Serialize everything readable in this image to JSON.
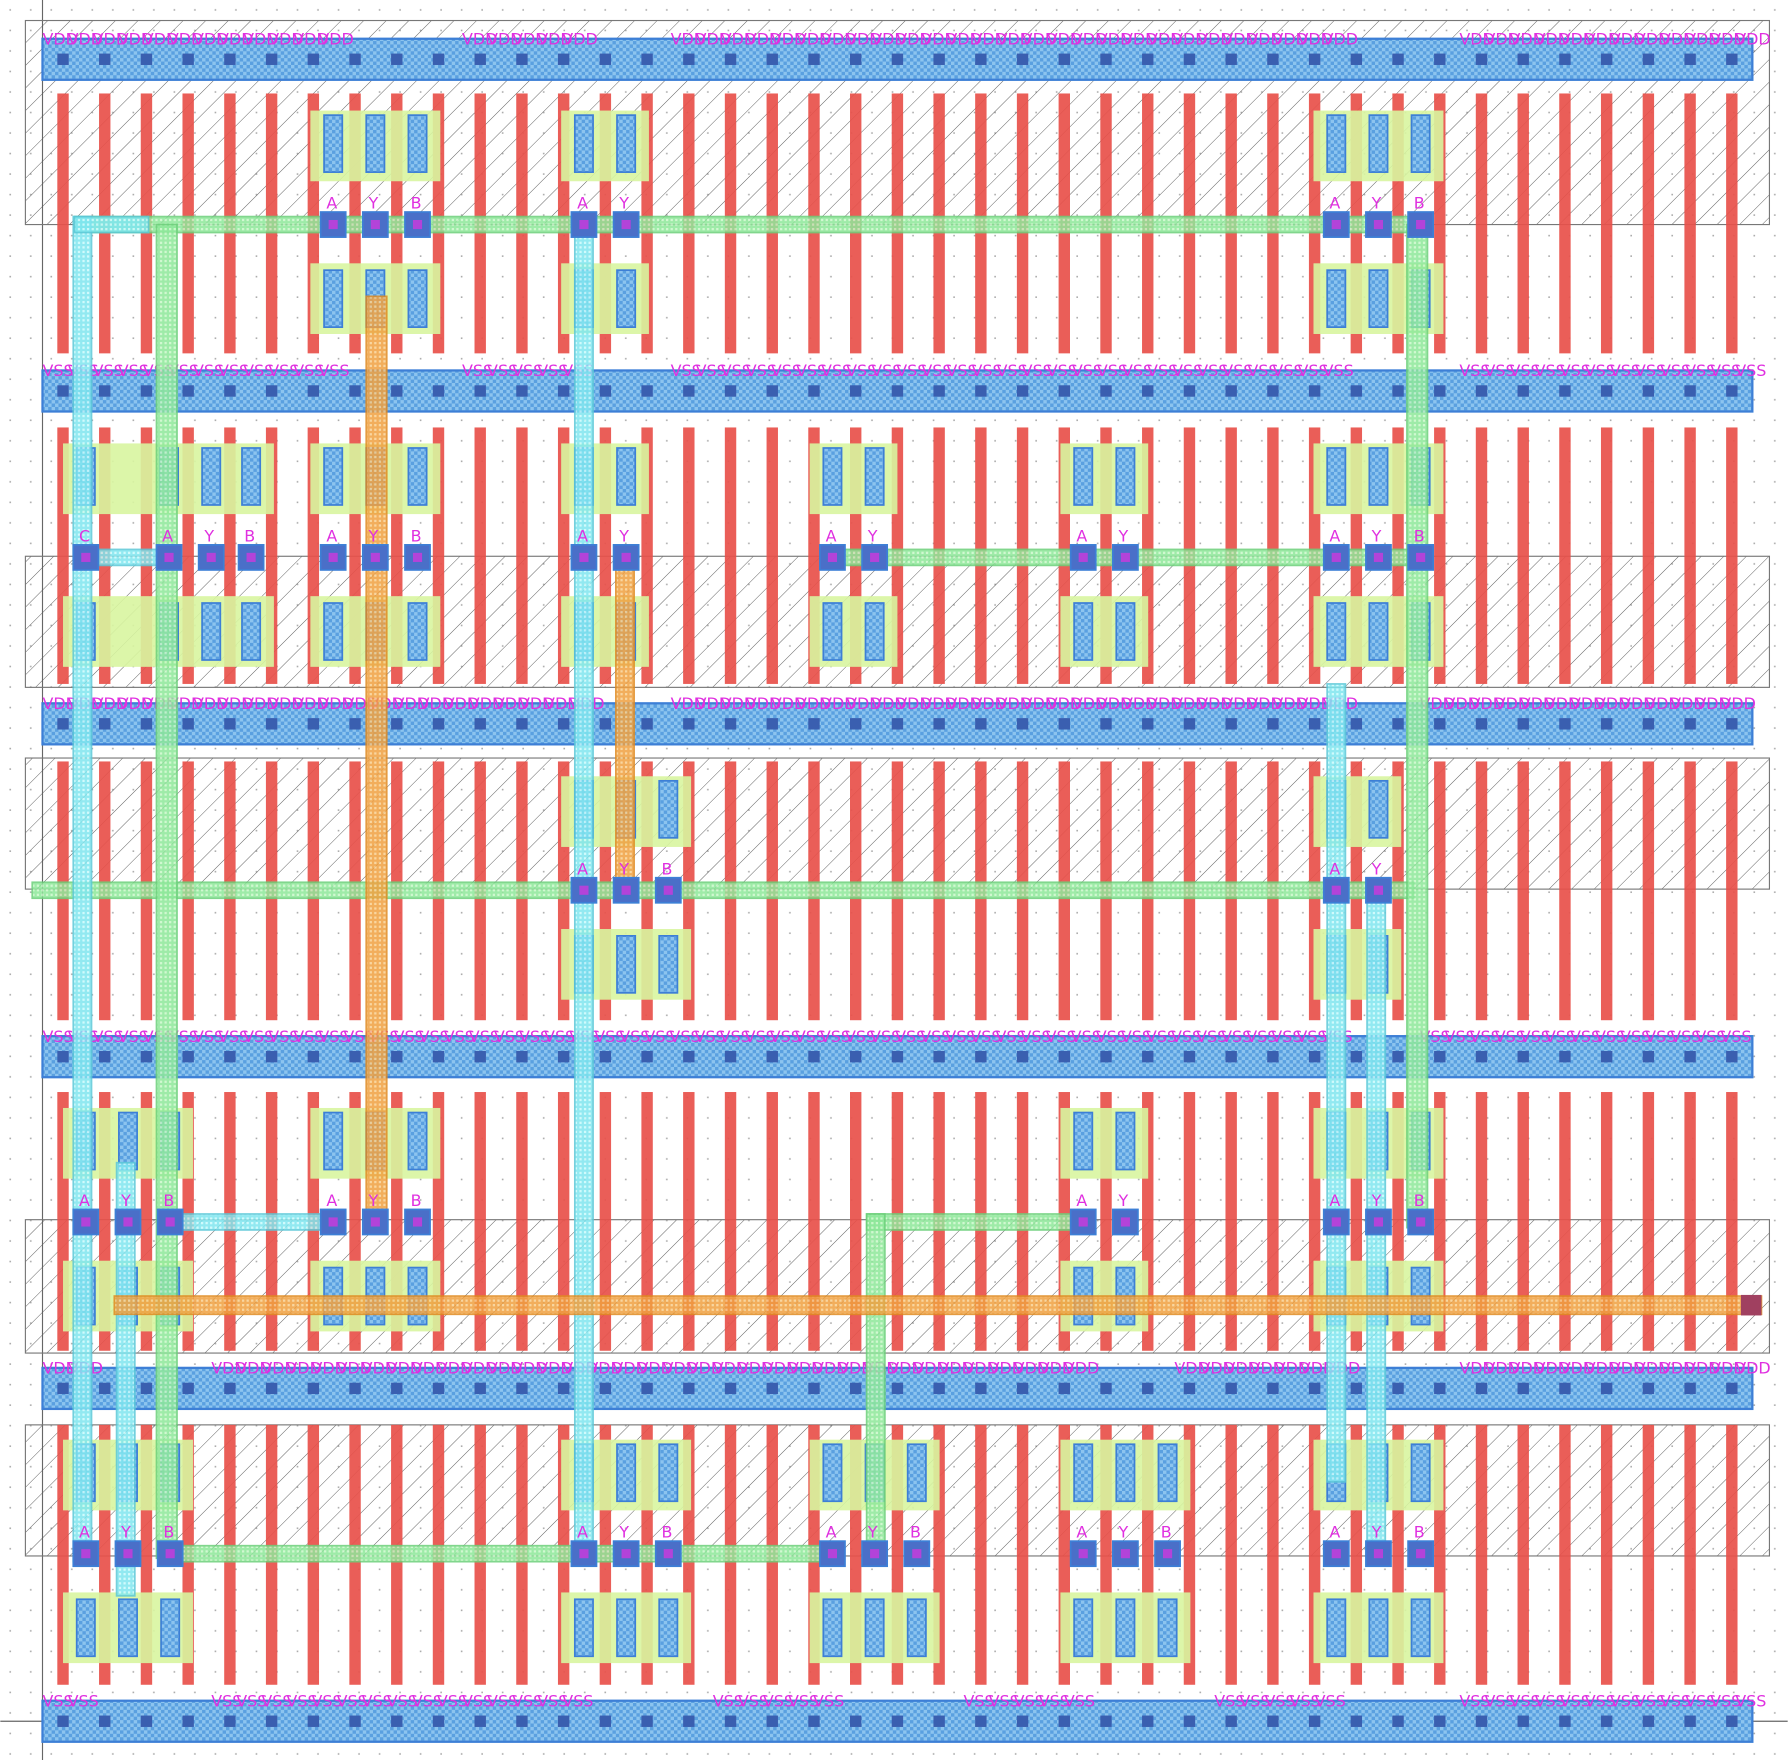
{
  "rails": [
    {
      "groups": [
        [
          "VDD",
          "VDD",
          "VDD",
          "VDD",
          "VDD",
          "VDD",
          "VDD",
          "VDD",
          "VDD",
          "VDD",
          "VDD",
          "VDD"
        ],
        [
          "VDD",
          "VDD",
          "VDD",
          "VDD",
          "VDD"
        ],
        [
          "VDD",
          "VDD",
          "VDD",
          "VDD",
          "VDD",
          "VDD",
          "VDD",
          "VDD",
          "VDD",
          "VDD",
          "VDD",
          "VDD",
          "VDD",
          "VDD",
          "VDD",
          "VDD",
          "VDD",
          "VDD",
          "VDD",
          "VDD",
          "VDD",
          "VDD",
          "VDD",
          "VDD",
          "VDD",
          "VDD",
          "VDD"
        ],
        [
          "VDD",
          "VDD",
          "VDD",
          "VDD",
          "VDD",
          "VDD",
          "VDD",
          "VDD",
          "VDD",
          "VDD",
          "VDD",
          "VDD"
        ]
      ]
    },
    {
      "groups": [
        [
          "VSS",
          "VSS",
          "VSS",
          "VSS",
          "VSS",
          "VSS",
          "VSS",
          "VSS",
          "VSS",
          "VSS",
          "VSS",
          "VSS"
        ],
        [
          "VSS",
          "VSS",
          "VSS",
          "VSS",
          "VSS"
        ],
        [
          "VSS",
          "VSS",
          "VSS",
          "VSS",
          "VSS",
          "VSS",
          "VSS",
          "VSS",
          "VSS",
          "VSS",
          "VSS",
          "VSS",
          "VSS",
          "VSS",
          "VSS",
          "VSS",
          "VSS",
          "VSS",
          "VSS",
          "VSS",
          "VSS",
          "VSS",
          "VSS",
          "VSS",
          "VSS",
          "VSS",
          "VSS"
        ],
        [
          "VSS",
          "VSS",
          "VSS",
          "VSS",
          "VSS",
          "VSS",
          "VSS",
          "VSS",
          "VSS",
          "VSS",
          "VSS",
          "VSS"
        ]
      ]
    },
    {
      "groups": [
        [
          "VDD",
          "VDD",
          "VDD",
          "VDD",
          "VDD",
          "VDD",
          "VDD",
          "VDD",
          "VDD",
          "VDD",
          "VDD",
          "VDD",
          "VDD",
          "VDD",
          "VDD",
          "VDD",
          "VDD",
          "VDD",
          "VDD",
          "VDD",
          "VDD",
          "VDD"
        ],
        [
          "VDD",
          "VDD",
          "VDD",
          "VDD",
          "VDD",
          "VDD",
          "VDD",
          "VDD",
          "VDD",
          "VDD",
          "VDD",
          "VDD",
          "VDD",
          "VDD",
          "VDD",
          "VDD",
          "VDD",
          "VDD",
          "VDD",
          "VDD",
          "VDD",
          "VDD",
          "VDD",
          "VDD",
          "VDD",
          "VDD",
          "VDD"
        ],
        [
          "VDD",
          "VDD",
          "VDD",
          "VDD",
          "VDD",
          "VDD",
          "VDD",
          "VDD",
          "VDD",
          "VDD",
          "VDD",
          "VDD",
          "VDD"
        ]
      ]
    },
    {
      "groups": [
        [
          "VSS",
          "VSS",
          "VSS",
          "VSS",
          "VSS",
          "VSS",
          "VSS",
          "VSS",
          "VSS",
          "VSS",
          "VSS",
          "VSS",
          "VSS",
          "VSS",
          "VSS",
          "VSS",
          "VSS",
          "VSS",
          "VSS",
          "VSS",
          "VSS",
          "VSS",
          "VSS",
          "VSS",
          "VSS",
          "VSS",
          "VSS",
          "VSS",
          "VSS",
          "VSS",
          "VSS",
          "VSS",
          "VSS",
          "VSS",
          "VSS",
          "VSS",
          "VSS",
          "VSS",
          "VSS",
          "VSS",
          "VSS",
          "VSS",
          "VSS",
          "VSS",
          "VSS",
          "VSS",
          "VSS",
          "VSS",
          "VSS",
          "VSS",
          "VSS",
          "VSS"
        ],
        [
          "VSS",
          "VSS",
          "VSS",
          "VSS",
          "VSS",
          "VSS",
          "VSS",
          "VSS",
          "VSS",
          "VSS",
          "VSS",
          "VSS",
          "VSS"
        ]
      ]
    },
    {
      "groups": [
        [
          "VDD",
          "VDD"
        ],
        [
          "VDD",
          "VDD",
          "VDD",
          "VDD",
          "VDD",
          "VDD",
          "VDD",
          "VDD",
          "VDD",
          "VDD",
          "VDD",
          "VDD",
          "VDD",
          "VDD",
          "VDD",
          "VDD",
          "VDD",
          "VDD",
          "VDD",
          "VDD",
          "VDD",
          "VDD",
          "VDD",
          "VDD",
          "VDD",
          "VDD",
          "VDD",
          "VDD",
          "VDD",
          "VDD",
          "VDD",
          "VDD",
          "VDD",
          "VDD",
          "VDD"
        ],
        [
          "VDD",
          "VDD",
          "VDD",
          "VDD",
          "VDD",
          "VDD",
          "VDD"
        ],
        [
          "VDD",
          "VDD",
          "VDD",
          "VDD",
          "VDD",
          "VDD",
          "VDD",
          "VDD",
          "VDD",
          "VDD",
          "VDD",
          "VDD"
        ]
      ]
    },
    {
      "groups": [
        [
          "VSS",
          "VSS"
        ],
        [
          "VSS",
          "VSS",
          "VSS",
          "VSS",
          "VSS",
          "VSS",
          "VSS",
          "VSS",
          "VSS",
          "VSS",
          "VSS",
          "VSS",
          "VSS",
          "VSS",
          "VSS"
        ],
        [
          "VSS",
          "VSS",
          "VSS",
          "VSS",
          "VSS"
        ],
        [
          "VSS",
          "VSS",
          "VSS",
          "VSS",
          "VSS"
        ],
        [
          "VSS",
          "VSS",
          "VSS",
          "VSS",
          "VSS"
        ],
        [
          "VSS",
          "VSS",
          "VSS",
          "VSS",
          "VSS",
          "VSS",
          "VSS",
          "VSS",
          "VSS",
          "VSS",
          "VSS",
          "VSS"
        ]
      ]
    }
  ],
  "cells": [
    {
      "pins": [
        "A",
        "Y",
        "B"
      ]
    },
    {
      "pins": [
        "A",
        "Y"
      ]
    },
    {
      "pins": [
        "A",
        "Y",
        "B"
      ]
    },
    {
      "pins": [
        "C",
        "A",
        "Y",
        "B"
      ]
    },
    {
      "pins": [
        "A",
        "Y",
        "B"
      ]
    },
    {
      "pins": [
        "A",
        "Y"
      ]
    },
    {
      "pins": [
        "A",
        "Y"
      ]
    },
    {
      "pins": [
        "A",
        "Y"
      ]
    },
    {
      "pins": [
        "A",
        "Y",
        "B"
      ]
    },
    {
      "pins": [
        "A",
        "Y",
        "B"
      ]
    },
    {
      "pins": [
        "A",
        "Y"
      ]
    },
    {
      "pins": [
        "A",
        "Y",
        "B"
      ]
    },
    {
      "pins": [
        "A",
        "Y",
        "B"
      ]
    },
    {
      "pins": [
        "A",
        "Y"
      ]
    },
    {
      "pins": [
        "A",
        "Y",
        "B"
      ]
    },
    {
      "pins": [
        "A",
        "Y",
        "B"
      ]
    },
    {
      "pins": [
        "A",
        "Y",
        "B"
      ]
    },
    {
      "pins": [
        "A",
        "Y",
        "B"
      ]
    },
    {
      "pins": [
        "A",
        "Y",
        "B"
      ]
    },
    {
      "pins": [
        "A",
        "Y",
        "B"
      ]
    }
  ]
}
